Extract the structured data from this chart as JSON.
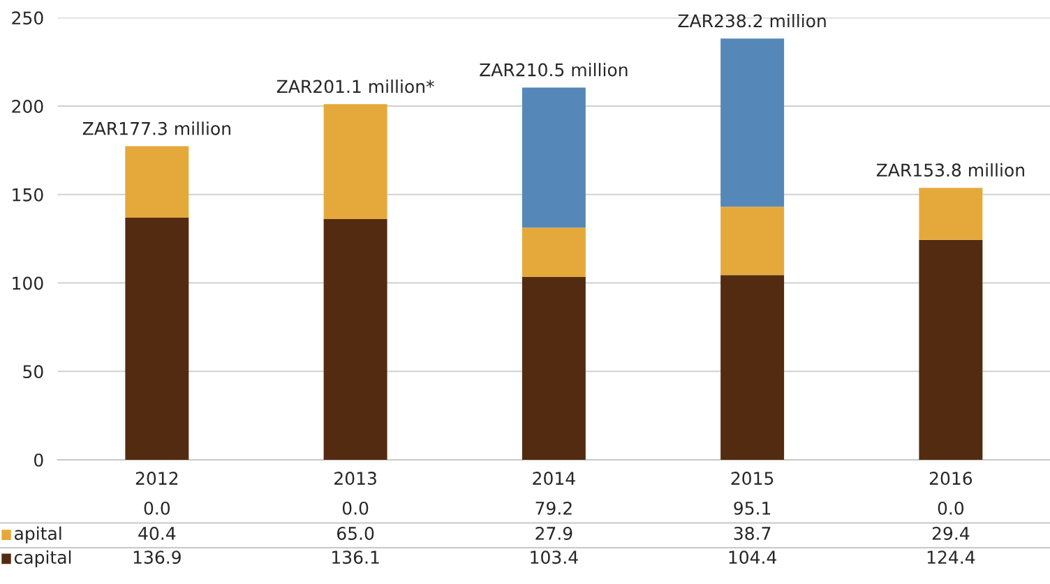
{
  "chart_data": {
    "type": "bar",
    "stacked": true,
    "categories": [
      "2012",
      "2013",
      "2014",
      "2015",
      "2016"
    ],
    "series": [
      {
        "name": "capital",
        "color": "#532b10",
        "values": [
          136.9,
          136.1,
          103.4,
          104.4,
          124.4
        ],
        "value_labels": [
          "136.9",
          "136.1",
          "103.4",
          "104.4",
          "124.4"
        ]
      },
      {
        "name": "apital",
        "color": "#e5a93b",
        "values": [
          40.4,
          65.0,
          27.9,
          38.7,
          29.4
        ],
        "value_labels": [
          "40.4",
          "65.0",
          "27.9",
          "38.7",
          "29.4"
        ]
      },
      {
        "color": "#5588b8",
        "values": [
          0.0,
          0.0,
          79.2,
          95.1,
          0.0
        ],
        "value_labels": [
          "0.0",
          "0.0",
          "79.2",
          "95.1",
          "0.0"
        ]
      }
    ],
    "totals": [
      "ZAR177.3 million",
      "ZAR201.1 million*",
      "ZAR210.5 million",
      "ZAR238.2 million",
      "ZAR153.8 million"
    ],
    "ylim": [
      0,
      250
    ],
    "yticks": [
      0,
      50,
      100,
      150,
      200,
      250
    ],
    "grid": "y",
    "legend": "bottom left"
  }
}
